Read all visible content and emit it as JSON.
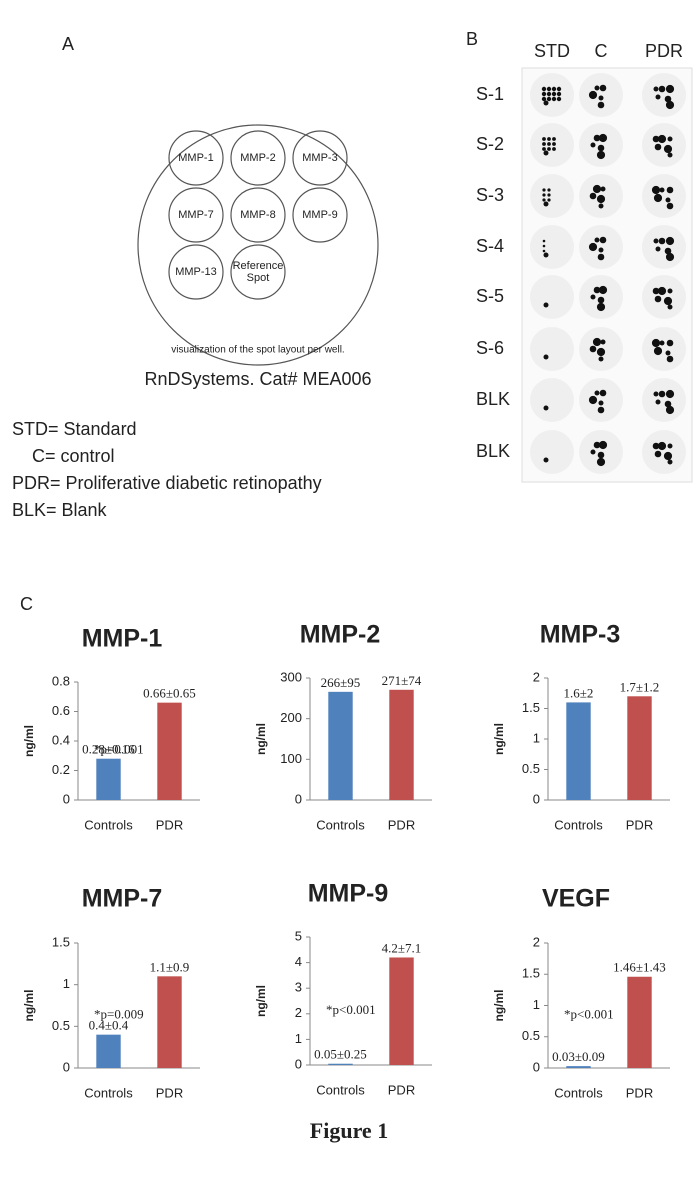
{
  "panel_a": {
    "label": "A",
    "wells": [
      "MMP-1",
      "MMP-2",
      "MMP-3",
      "MMP-7",
      "MMP-8",
      "MMP-9",
      "MMP-13",
      "Reference Spot"
    ],
    "caption": "visualization of the spot layout per well.",
    "source": "RnDSystems. Cat# MEA006"
  },
  "legend": [
    "STD= Standard",
    "C= control",
    "PDR= Proliferative diabetic retinopathy",
    "BLK= Blank"
  ],
  "panel_b": {
    "label": "B",
    "columns": [
      "STD",
      "C",
      "PDR"
    ],
    "rows": [
      "S-1",
      "S-2",
      "S-3",
      "S-4",
      "S-5",
      "S-6",
      "BLK",
      "BLK"
    ]
  },
  "panel_c_label": "C",
  "chart_data": [
    {
      "type": "bar",
      "title": "MMP-1",
      "ylabel": "ng/ml",
      "categories": [
        "Controls",
        "PDR"
      ],
      "values": [
        0.28,
        0.66
      ],
      "value_labels": [
        "0.28±0.16",
        "0.66±0.65"
      ],
      "colors": [
        "#4f81bd",
        "#c0504d"
      ],
      "ylim": [
        0,
        0.8
      ],
      "yticks": [
        0,
        0.2,
        0.4,
        0.6,
        0.8
      ],
      "annotation": "*p=0.001"
    },
    {
      "type": "bar",
      "title": "MMP-2",
      "ylabel": "ng/ml",
      "categories": [
        "Controls",
        "PDR"
      ],
      "values": [
        266,
        271
      ],
      "value_labels": [
        "266±95",
        "271±74"
      ],
      "colors": [
        "#4f81bd",
        "#c0504d"
      ],
      "ylim": [
        0,
        300
      ],
      "yticks": [
        0,
        100,
        200,
        300
      ]
    },
    {
      "type": "bar",
      "title": "MMP-3",
      "ylabel": "ng/ml",
      "categories": [
        "Controls",
        "PDR"
      ],
      "values": [
        1.6,
        1.7
      ],
      "value_labels": [
        "1.6±2",
        "1.7±1.2"
      ],
      "colors": [
        "#4f81bd",
        "#c0504d"
      ],
      "ylim": [
        0,
        2
      ],
      "yticks": [
        0,
        0.5,
        1,
        1.5,
        2
      ]
    },
    {
      "type": "bar",
      "title": "MMP-7",
      "ylabel": "ng/ml",
      "categories": [
        "Controls",
        "PDR"
      ],
      "values": [
        0.4,
        1.1
      ],
      "value_labels": [
        "0.4±0.4",
        "1.1±0.9"
      ],
      "colors": [
        "#4f81bd",
        "#c0504d"
      ],
      "ylim": [
        0,
        1.5
      ],
      "yticks": [
        0,
        0.5,
        1,
        1.5
      ],
      "annotation": "*p=0.009"
    },
    {
      "type": "bar",
      "title": "MMP-9",
      "ylabel": "ng/ml",
      "categories": [
        "Controls",
        "PDR"
      ],
      "values": [
        0.05,
        4.2
      ],
      "value_labels": [
        "0.05±0.25",
        "4.2±7.1"
      ],
      "colors": [
        "#4f81bd",
        "#c0504d"
      ],
      "ylim": [
        0,
        5
      ],
      "yticks": [
        0,
        1,
        2,
        3,
        4,
        5
      ],
      "annotation": "*p<0.001"
    },
    {
      "type": "bar",
      "title": "VEGF",
      "ylabel": "ng/ml",
      "categories": [
        "Controls",
        "PDR"
      ],
      "values": [
        0.03,
        1.46
      ],
      "value_labels": [
        "0.03±0.09",
        "1.46±1.43"
      ],
      "colors": [
        "#4f81bd",
        "#c0504d"
      ],
      "ylim": [
        0,
        2
      ],
      "yticks": [
        0,
        0.5,
        1,
        1.5,
        2
      ],
      "annotation": "*p<0.001"
    }
  ],
  "caption": "Figure 1"
}
